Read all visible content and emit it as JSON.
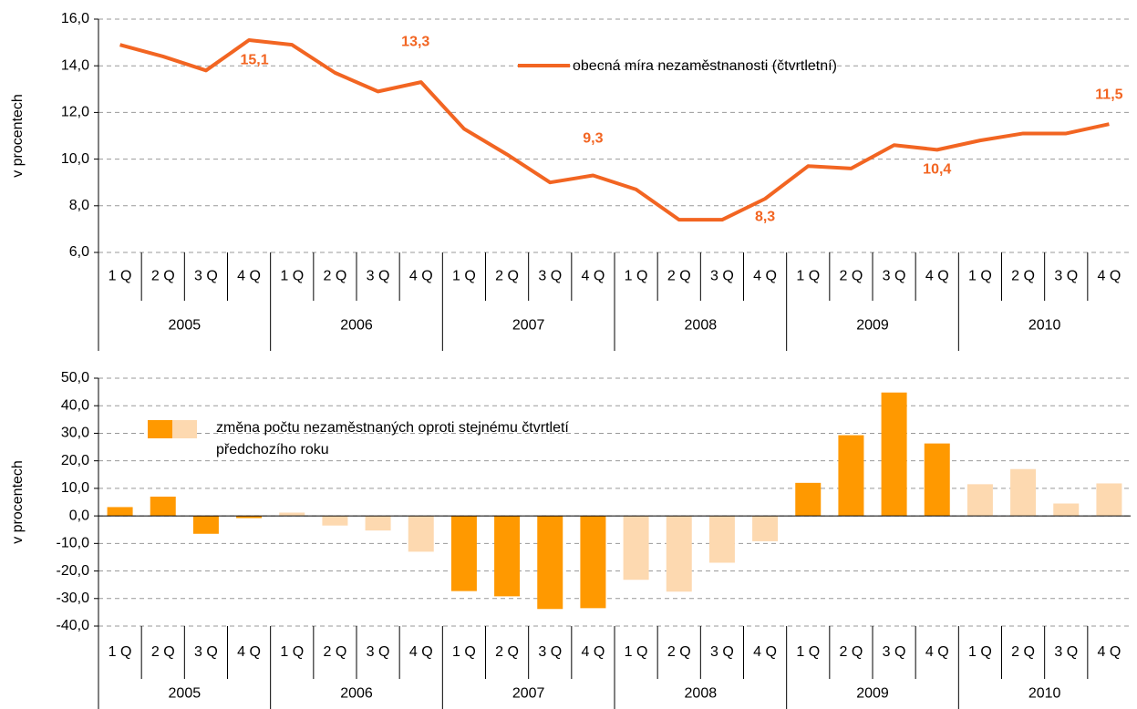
{
  "chart_data": [
    {
      "type": "line",
      "axis_label": "v procentech",
      "categories": [
        "1 Q",
        "2 Q",
        "3 Q",
        "4 Q",
        "1 Q",
        "2 Q",
        "3 Q",
        "4 Q",
        "1 Q",
        "2 Q",
        "3 Q",
        "4 Q",
        "1 Q",
        "2 Q",
        "3 Q",
        "4 Q",
        "1 Q",
        "2 Q",
        "3 Q",
        "4 Q",
        "1 Q",
        "2 Q",
        "3 Q",
        "4 Q"
      ],
      "years": [
        "2005",
        "2006",
        "2007",
        "2008",
        "2009",
        "2010"
      ],
      "series": [
        {
          "name": "obecná míra nezaměstnanosti (čtvrtletní)",
          "color": "#f26522",
          "values": [
            14.9,
            14.4,
            13.8,
            15.1,
            14.9,
            13.7,
            12.9,
            13.3,
            11.3,
            10.2,
            9.0,
            9.3,
            8.7,
            7.4,
            7.4,
            8.3,
            9.7,
            9.6,
            10.6,
            10.4,
            10.8,
            11.1,
            11.1,
            11.5
          ],
          "value_labels": [
            null,
            null,
            null,
            "15,1",
            null,
            null,
            null,
            "13,3",
            null,
            null,
            null,
            "9,3",
            null,
            null,
            null,
            "8,3",
            null,
            null,
            null,
            "10,4",
            null,
            null,
            null,
            "11,5"
          ]
        }
      ],
      "ylim": [
        6,
        16
      ],
      "yticks": [
        {
          "value": 6,
          "label": "6,0"
        },
        {
          "value": 8,
          "label": "8,0"
        },
        {
          "value": 10,
          "label": "10,0"
        },
        {
          "value": 12,
          "label": "12,0"
        },
        {
          "value": 14,
          "label": "14,0"
        },
        {
          "value": 16,
          "label": "16,0"
        }
      ],
      "grid": true
    },
    {
      "type": "bar",
      "axis_label": "v procentech",
      "categories": [
        "1 Q",
        "2 Q",
        "3 Q",
        "4 Q",
        "1 Q",
        "2 Q",
        "3 Q",
        "4 Q",
        "1 Q",
        "2 Q",
        "3 Q",
        "4 Q",
        "1 Q",
        "2 Q",
        "3 Q",
        "4 Q",
        "1 Q",
        "2 Q",
        "3 Q",
        "4 Q",
        "1 Q",
        "2 Q",
        "3 Q",
        "4 Q"
      ],
      "years": [
        "2005",
        "2006",
        "2007",
        "2008",
        "2009",
        "2010"
      ],
      "series": [
        {
          "name": "změna počtu nezaměstnaných oproti stejnému čtvrtletí předchozího roku",
          "colors": [
            "#ff9900",
            "#fdd9b0"
          ],
          "values": [
            3.2,
            7.0,
            -6.5,
            -0.8,
            1.2,
            -3.5,
            -5.3,
            -13.0,
            -27.3,
            -29.2,
            -33.8,
            -33.5,
            -23.2,
            -27.5,
            -17.0,
            -9.2,
            12.0,
            29.3,
            44.8,
            26.3,
            11.5,
            17.0,
            4.5,
            11.8
          ]
        }
      ],
      "ylim": [
        -40,
        50
      ],
      "yticks": [
        {
          "value": -40,
          "label": "-40,0"
        },
        {
          "value": -30,
          "label": "-30,0"
        },
        {
          "value": -20,
          "label": "-20,0"
        },
        {
          "value": -10,
          "label": "-10,0"
        },
        {
          "value": 0,
          "label": "0,0"
        },
        {
          "value": 10,
          "label": "10,0"
        },
        {
          "value": 20,
          "label": "20,0"
        },
        {
          "value": 30,
          "label": "30,0"
        },
        {
          "value": 40,
          "label": "40,0"
        },
        {
          "value": 50,
          "label": "50,0"
        }
      ],
      "grid": true
    }
  ]
}
